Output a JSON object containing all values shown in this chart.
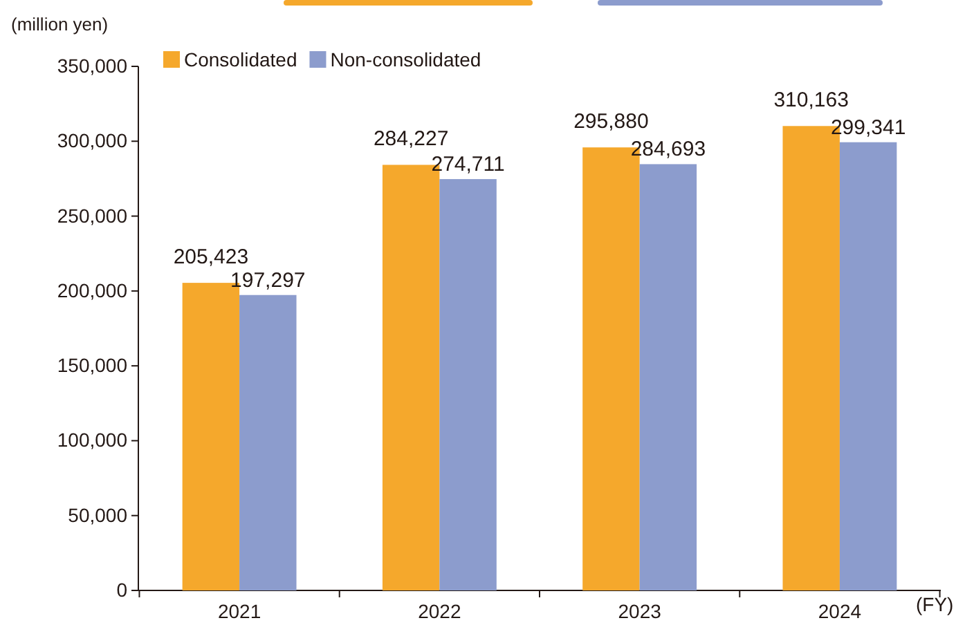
{
  "chart_data": {
    "type": "bar",
    "ylabel": "(million yen)",
    "xlabel": "(FY)",
    "categories": [
      "2021",
      "2022",
      "2023",
      "2024"
    ],
    "series": [
      {
        "name": "Consolidated",
        "color": "#f5a82c",
        "values": [
          205423,
          284227,
          295880,
          310163
        ],
        "value_labels": [
          "205,423",
          "284,227",
          "295,880",
          "310,163"
        ]
      },
      {
        "name": "Non-consolidated",
        "color": "#8c9ccd",
        "values": [
          197297,
          274711,
          284693,
          299341
        ],
        "value_labels": [
          "197,297",
          "274,711",
          "284,693",
          "299,341"
        ]
      }
    ],
    "ylim": [
      0,
      350000
    ],
    "yticks": [
      {
        "value": 0,
        "label": "0"
      },
      {
        "value": 50000,
        "label": "50,000"
      },
      {
        "value": 100000,
        "label": "100,000"
      },
      {
        "value": 150000,
        "label": "150,000"
      },
      {
        "value": 200000,
        "label": "200,000"
      },
      {
        "value": 250000,
        "label": "250,000"
      },
      {
        "value": 300000,
        "label": "300,000"
      },
      {
        "value": 350000,
        "label": "350,000"
      }
    ],
    "legend": "top left",
    "grid": false
  }
}
